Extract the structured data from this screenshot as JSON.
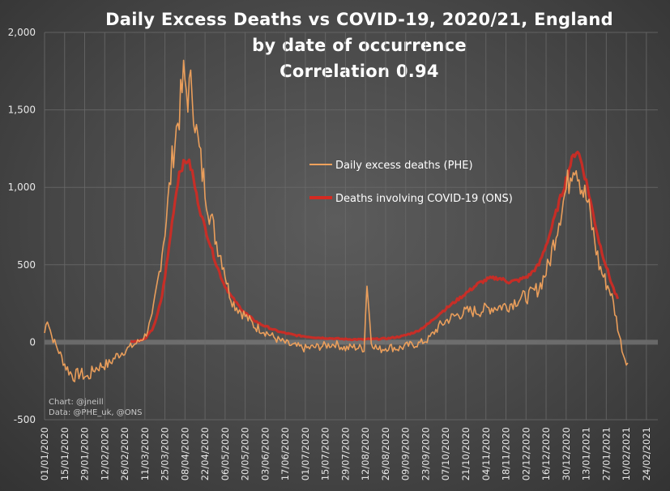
{
  "chart_data": {
    "type": "line",
    "title": "Daily Excess Deaths vs COVID-19, 2020/21, England",
    "subtitle": "by date of occurrence",
    "annotation": "Correlation 0.94",
    "ylim": [
      -500,
      2000
    ],
    "yticks": [
      -500,
      0,
      500,
      1000,
      1500,
      2000
    ],
    "ytick_labels": [
      "-500",
      "0",
      "500",
      "1,000",
      "1,500",
      "2,000"
    ],
    "x_start": "01/01/2020",
    "x_end": "03/03/2021",
    "x_tick_labels": [
      "01/01/2020",
      "15/01/2020",
      "29/01/2020",
      "12/02/2020",
      "26/02/2020",
      "11/03/2020",
      "25/03/2020",
      "08/04/2020",
      "22/04/2020",
      "06/05/2020",
      "20/05/2020",
      "03/06/2020",
      "17/06/2020",
      "01/07/2020",
      "15/07/2020",
      "29/07/2020",
      "12/08/2020",
      "26/08/2020",
      "09/09/2020",
      "23/09/2020",
      "07/10/2020",
      "21/10/2020",
      "04/11/2020",
      "18/11/2020",
      "02/12/2020",
      "16/12/2020",
      "30/12/2020",
      "13/01/2021",
      "27/01/2021",
      "10/02/2021",
      "24/02/2021"
    ],
    "x_tick_step_days": 14,
    "legend_placement": "center-right",
    "grid": true,
    "series": [
      {
        "name": "Daily excess deaths (PHE)",
        "color": "#f2a25c",
        "keypoints": [
          [
            0,
            60
          ],
          [
            2,
            160
          ],
          [
            5,
            40
          ],
          [
            10,
            -60
          ],
          [
            15,
            -160
          ],
          [
            20,
            -220
          ],
          [
            25,
            -200
          ],
          [
            30,
            -230
          ],
          [
            35,
            -170
          ],
          [
            40,
            -150
          ],
          [
            45,
            -140
          ],
          [
            50,
            -90
          ],
          [
            55,
            -60
          ],
          [
            60,
            -30
          ],
          [
            65,
            0
          ],
          [
            70,
            40
          ],
          [
            75,
            150
          ],
          [
            80,
            450
          ],
          [
            85,
            800
          ],
          [
            90,
            1250
          ],
          [
            95,
            1550
          ],
          [
            97,
            1700
          ],
          [
            100,
            1600
          ],
          [
            103,
            1650
          ],
          [
            106,
            1350
          ],
          [
            110,
            1100
          ],
          [
            115,
            850
          ],
          [
            120,
            650
          ],
          [
            125,
            500
          ],
          [
            128,
            350
          ],
          [
            132,
            250
          ],
          [
            137,
            200
          ],
          [
            142,
            150
          ],
          [
            147,
            100
          ],
          [
            152,
            80
          ],
          [
            157,
            50
          ],
          [
            162,
            20
          ],
          [
            167,
            0
          ],
          [
            172,
            -20
          ],
          [
            177,
            -30
          ],
          [
            182,
            -40
          ],
          [
            190,
            -30
          ],
          [
            197,
            -20
          ],
          [
            203,
            -10
          ],
          [
            210,
            -40
          ],
          [
            215,
            -30
          ],
          [
            223,
            -40
          ],
          [
            225,
            390
          ],
          [
            228,
            0
          ],
          [
            233,
            -50
          ],
          [
            240,
            -30
          ],
          [
            247,
            -40
          ],
          [
            254,
            -20
          ],
          [
            261,
            -10
          ],
          [
            268,
            20
          ],
          [
            275,
            100
          ],
          [
            282,
            150
          ],
          [
            289,
            180
          ],
          [
            296,
            200
          ],
          [
            303,
            200
          ],
          [
            310,
            220
          ],
          [
            317,
            230
          ],
          [
            324,
            240
          ],
          [
            331,
            280
          ],
          [
            338,
            300
          ],
          [
            345,
            350
          ],
          [
            352,
            500
          ],
          [
            359,
            800
          ],
          [
            363,
            950
          ],
          [
            366,
            1050
          ],
          [
            369,
            1180
          ],
          [
            372,
            1130
          ],
          [
            375,
            1000
          ],
          [
            379,
            900
          ],
          [
            383,
            700
          ],
          [
            387,
            500
          ],
          [
            391,
            400
          ],
          [
            395,
            330
          ],
          [
            398,
            200
          ],
          [
            401,
            50
          ],
          [
            404,
            -80
          ],
          [
            407,
            -130
          ]
        ]
      },
      {
        "name": "Deaths involving COVID-19 (ONS)",
        "color": "#d42a22",
        "keypoints": [
          [
            60,
            5
          ],
          [
            65,
            8
          ],
          [
            70,
            20
          ],
          [
            75,
            80
          ],
          [
            78,
            150
          ],
          [
            82,
            300
          ],
          [
            86,
            550
          ],
          [
            90,
            850
          ],
          [
            94,
            1100
          ],
          [
            97,
            1150
          ],
          [
            100,
            1180
          ],
          [
            103,
            1100
          ],
          [
            106,
            950
          ],
          [
            110,
            800
          ],
          [
            115,
            650
          ],
          [
            120,
            500
          ],
          [
            125,
            380
          ],
          [
            130,
            300
          ],
          [
            135,
            240
          ],
          [
            140,
            190
          ],
          [
            145,
            150
          ],
          [
            150,
            120
          ],
          [
            155,
            100
          ],
          [
            160,
            80
          ],
          [
            165,
            65
          ],
          [
            170,
            55
          ],
          [
            175,
            45
          ],
          [
            180,
            40
          ],
          [
            190,
            30
          ],
          [
            200,
            25
          ],
          [
            210,
            20
          ],
          [
            220,
            18
          ],
          [
            230,
            20
          ],
          [
            240,
            25
          ],
          [
            250,
            40
          ],
          [
            260,
            70
          ],
          [
            268,
            120
          ],
          [
            275,
            180
          ],
          [
            282,
            230
          ],
          [
            289,
            280
          ],
          [
            296,
            330
          ],
          [
            303,
            380
          ],
          [
            310,
            410
          ],
          [
            317,
            415
          ],
          [
            324,
            390
          ],
          [
            331,
            400
          ],
          [
            338,
            430
          ],
          [
            345,
            500
          ],
          [
            352,
            680
          ],
          [
            359,
            900
          ],
          [
            364,
            1050
          ],
          [
            367,
            1150
          ],
          [
            370,
            1220
          ],
          [
            372,
            1240
          ],
          [
            375,
            1150
          ],
          [
            379,
            1000
          ],
          [
            383,
            820
          ],
          [
            387,
            650
          ],
          [
            391,
            520
          ],
          [
            395,
            400
          ],
          [
            398,
            320
          ],
          [
            400,
            280
          ]
        ]
      }
    ]
  },
  "credits": {
    "line1": "Chart: @jneill",
    "line2": "Data: @PHE_uk, @ONS"
  }
}
